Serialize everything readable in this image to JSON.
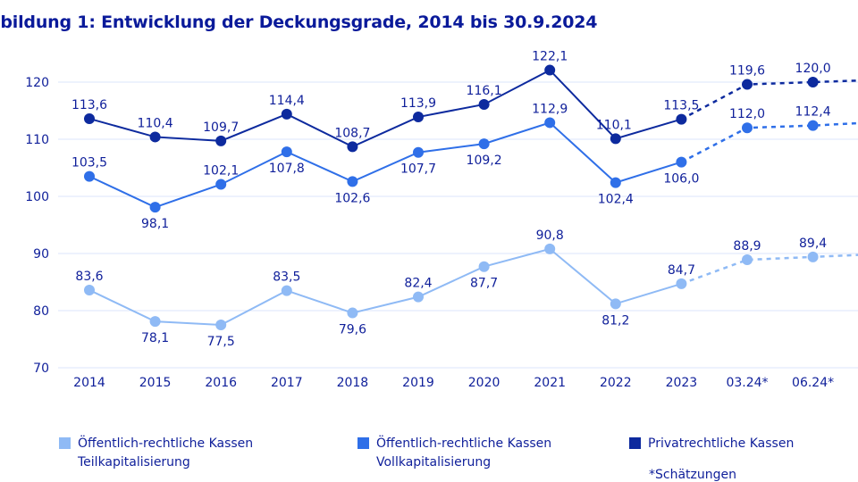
{
  "chart_data": {
    "type": "line",
    "title": "bbildung 1: Entwicklung der Deckungsgrade, 2014 bis 30.9.2024",
    "categories": [
      "2014",
      "2015",
      "2016",
      "2017",
      "2018",
      "2019",
      "2020",
      "2021",
      "2022",
      "2023",
      "03.24*",
      "06.24*"
    ],
    "ylim": [
      70,
      120
    ],
    "yticks": [
      70,
      80,
      90,
      100,
      110,
      120
    ],
    "grid": true,
    "legend_position": "bottom",
    "estimated_from_index": 9,
    "series": [
      {
        "name": "Öffentlich-rechtliche Kassen Teilkapitalisierung",
        "legend_line1": "Öffentlich-rechtliche Kassen",
        "legend_line2": "Teilkapitalisierung",
        "color": "#8fbaf5",
        "values": [
          83.6,
          78.1,
          77.5,
          83.5,
          79.6,
          82.4,
          87.7,
          90.8,
          81.2,
          84.7,
          88.9,
          89.4
        ],
        "labels": [
          "83,6",
          "78,1",
          "77,5",
          "83,5",
          "79,6",
          "82,4",
          "87,7",
          "90,8",
          "81,2",
          "84,7",
          "88,9",
          "89,4"
        ]
      },
      {
        "name": "Öffentlich-rechtliche Kassen Vollkapitalisierung",
        "legend_line1": "Öffentlich-rechtliche Kassen",
        "legend_line2": "Vollkapitalisierung",
        "color": "#2f6fe8",
        "values": [
          103.5,
          98.1,
          102.1,
          107.8,
          102.6,
          107.7,
          109.2,
          112.9,
          102.4,
          106.0,
          112.0,
          112.4
        ],
        "labels": [
          "103,5",
          "98,1",
          "102,1",
          "107,8",
          "102,6",
          "107,7",
          "109,2",
          "112,9",
          "102,4",
          "106,0",
          "112,0",
          "112,4"
        ]
      },
      {
        "name": "Privatrechtliche Kassen",
        "legend_line1": "Privatrechtliche Kassen",
        "legend_line2": "",
        "color": "#0d2a9e",
        "values": [
          113.6,
          110.4,
          109.7,
          114.4,
          108.7,
          113.9,
          116.1,
          122.1,
          110.1,
          113.5,
          119.6,
          120.0
        ],
        "labels": [
          "113,6",
          "110,4",
          "109,7",
          "114,4",
          "108,7",
          "113,9",
          "116,1",
          "122,1",
          "110,1",
          "113,5",
          "119,6",
          "120,0"
        ]
      }
    ],
    "note": "*Schätzungen"
  }
}
